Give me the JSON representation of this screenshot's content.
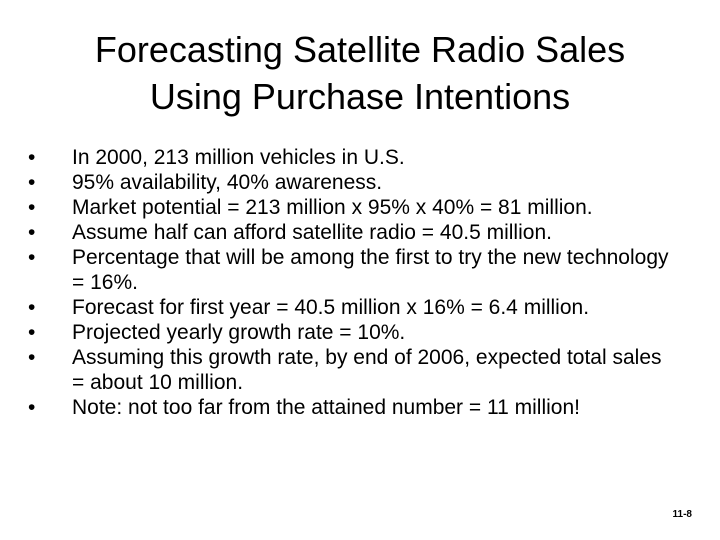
{
  "title": {
    "line1": "Forecasting Satellite Radio Sales",
    "line2": "Using Purchase Intentions"
  },
  "bullets": [
    "In 2000, 213 million vehicles in U.S.",
    "95% availability, 40% awareness.",
    "Market potential = 213 million x 95% x 40% = 81 million.",
    "Assume half can afford satellite radio = 40.5 million.",
    "Percentage that will be among the first to try the new technology = 16%.",
    "Forecast for first year = 40.5 million x 16% = 6.4 million.",
    "Projected yearly growth rate = 10%.",
    "Assuming this growth rate, by end of 2006, expected total sales = about 10 million.",
    "Note: not too far from the attained number = 11 million!"
  ],
  "bullet_symbol": "•",
  "slide_number": "11-8"
}
